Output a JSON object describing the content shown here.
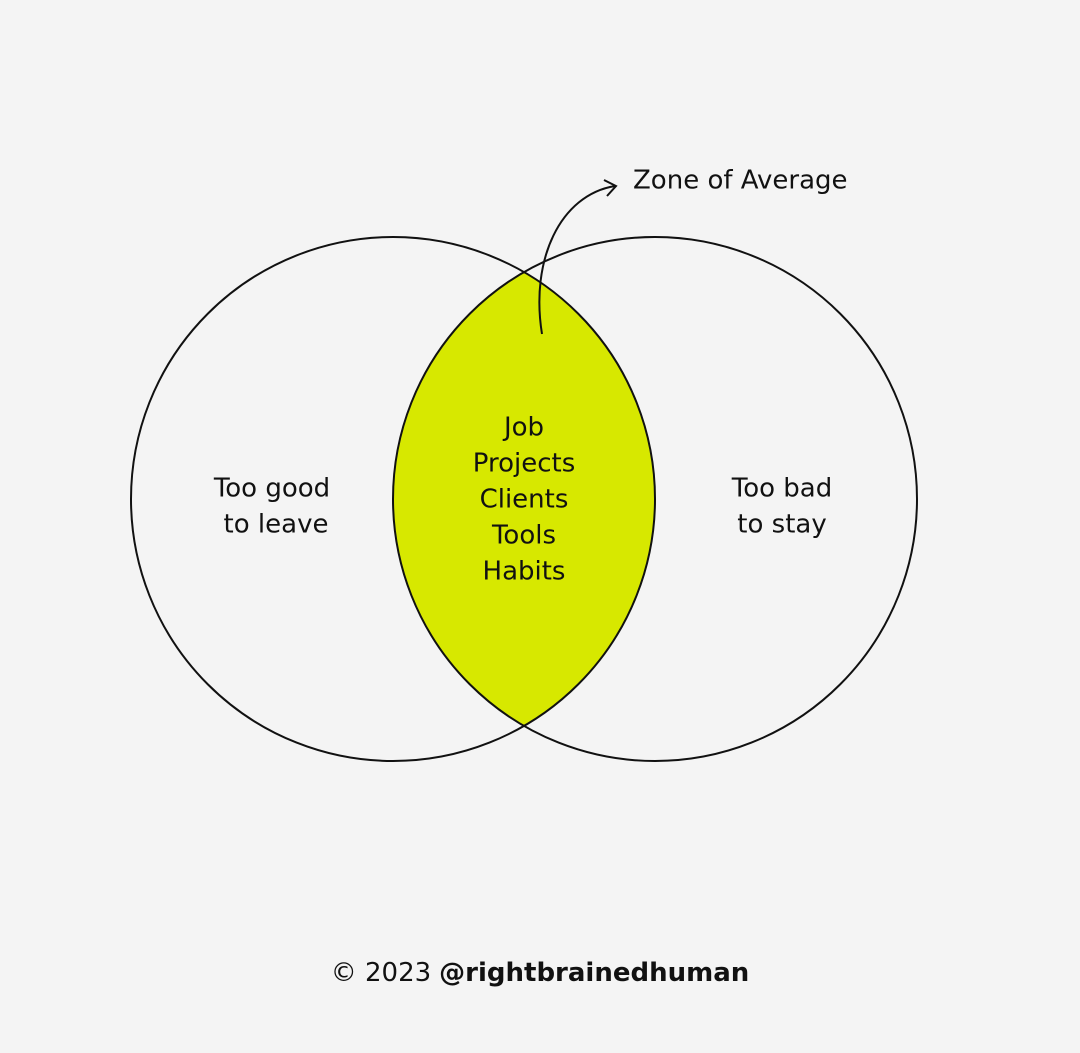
{
  "zone_label": "Zone of Average",
  "left_circle": {
    "lines": [
      "Too good",
      "to leave"
    ]
  },
  "right_circle": {
    "lines": [
      "Too bad",
      "to stay"
    ]
  },
  "overlap": {
    "items": [
      "Job",
      "Projects",
      "Clients",
      "Tools",
      "Habits"
    ]
  },
  "footer": {
    "copyright": "© 2023",
    "handle": "@rightbrainedhuman"
  }
}
